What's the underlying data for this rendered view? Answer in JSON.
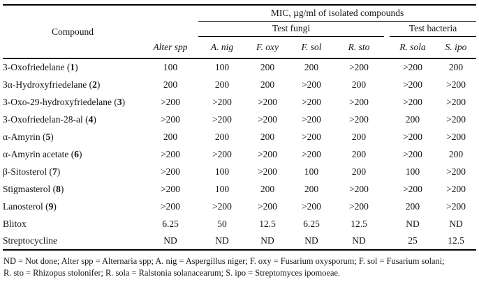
{
  "colors": {
    "background": "#ffffff",
    "text": "#141414",
    "rule": "#000000"
  },
  "table": {
    "header": {
      "compound": "Compound",
      "mic": "MIC, µg/ml of isolated compounds",
      "fungi": "Test fungi",
      "bacteria": "Test bacteria",
      "species": [
        "Alter spp",
        "A. nig",
        "F. oxy",
        "F. sol",
        "R. sto",
        "R. sola",
        "S. ipo"
      ]
    },
    "rows": [
      {
        "compound": "3-Oxofriedelane",
        "number": "1",
        "values": [
          "100",
          "100",
          "200",
          "200",
          ">200",
          ">200",
          "200"
        ]
      },
      {
        "compound": "3α-Hydroxyfriedelane",
        "number": "2",
        "values": [
          "200",
          "200",
          "200",
          ">200",
          "200",
          ">200",
          ">200"
        ]
      },
      {
        "compound": "3-Oxo-29-hydroxyfriedelane",
        "number": "3",
        "values": [
          ">200",
          ">200",
          ">200",
          ">200",
          ">200",
          ">200",
          ">200"
        ]
      },
      {
        "compound": "3-Oxofriedelan-28-al",
        "number": "4",
        "values": [
          ">200",
          ">200",
          ">200",
          ">200",
          ">200",
          "200",
          ">200"
        ]
      },
      {
        "compound": "α-Amyrin",
        "number": "5",
        "values": [
          "200",
          "200",
          "200",
          ">200",
          "200",
          ">200",
          ">200"
        ]
      },
      {
        "compound": "α-Amyrin acetate",
        "number": "6",
        "values": [
          ">200",
          ">200",
          ">200",
          ">200",
          "200",
          ">200",
          "200"
        ]
      },
      {
        "compound": "β-Sitosterol",
        "number": "7",
        "values": [
          ">200",
          "100",
          ">200",
          "100",
          "200",
          "100",
          ">200"
        ]
      },
      {
        "compound": "Stigmasterol",
        "number": "8",
        "values": [
          ">200",
          "100",
          "200",
          "200",
          ">200",
          ">200",
          ">200"
        ]
      },
      {
        "compound": "Lanosterol",
        "number": "9",
        "values": [
          ">200",
          ">200",
          ">200",
          ">200",
          ">200",
          "200",
          ">200"
        ]
      },
      {
        "compound": "Blitox",
        "number": null,
        "values": [
          "6.25",
          "50",
          "12.5",
          "6.25",
          "12.5",
          "ND",
          "ND"
        ]
      },
      {
        "compound": "Streptocycline",
        "number": null,
        "values": [
          "ND",
          "ND",
          "ND",
          "ND",
          "ND",
          "25",
          "12.5"
        ]
      }
    ]
  },
  "footnote": {
    "line1": "ND = Not done; Alter spp = Alternaria spp; A. nig = Aspergillus niger; F. oxy = Fusarium oxysporum; F. sol = Fusarium solani;",
    "line2": "R. sto = Rhizopus stolonifer; R. sola = Ralstonia solanacearum; S. ipo = Streptomyces ipomoeae."
  }
}
